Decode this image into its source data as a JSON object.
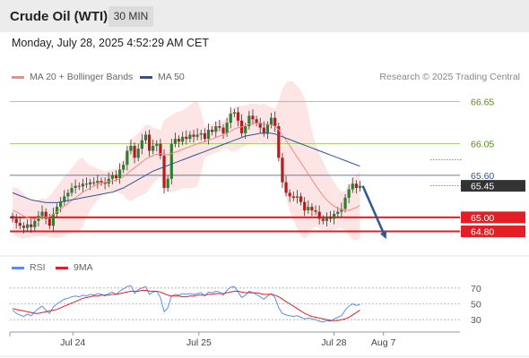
{
  "header": {
    "title": "Crude Oil (WTI)",
    "timeframe": "30 MIN",
    "datetime": "Monday, July 28, 2025 4:52:29 AM CET"
  },
  "legend": {
    "items": [
      {
        "label": "MA 20 + Bollinger Bands",
        "color": "#f28b82"
      },
      {
        "label": "MA 50",
        "color": "#2f5597"
      }
    ],
    "credit": "Research © 2025 Trading Central"
  },
  "chart_data": [
    {
      "type": "candlestick",
      "ylim": [
        64.5,
        66.85
      ],
      "xlim": [
        0,
        100
      ],
      "x_ticks": [
        {
          "label": "Jul 24",
          "x": 14
        },
        {
          "label": "Jul 25",
          "x": 42
        },
        {
          "label": "Jul 28",
          "x": 72
        },
        {
          "label": "Aug 7",
          "x": 83
        }
      ],
      "current_price": 65.45,
      "levels": [
        {
          "value": 66.65,
          "label": "66.65",
          "style": "resistance",
          "color": "#8bc34a"
        },
        {
          "value": 66.05,
          "label": "66.05",
          "style": "resistance",
          "color": "#8bc34a"
        },
        {
          "value": 65.6,
          "label": "65.60",
          "style": "pivot",
          "color": "#2f5597"
        },
        {
          "value": 65.45,
          "label": "65.45",
          "style": "last",
          "color": "#333333"
        },
        {
          "value": 65.0,
          "label": "65.00",
          "style": "support",
          "color": "#e31e24"
        },
        {
          "value": 64.8,
          "label": "64.80",
          "style": "support",
          "color": "#e31e24"
        }
      ],
      "arrow": {
        "from": [
          78,
          65.45
        ],
        "to": [
          84,
          64.75
        ],
        "color": "#2f5597"
      },
      "closes": [
        64.98,
        64.92,
        64.88,
        64.85,
        64.9,
        64.86,
        64.95,
        65.02,
        65.08,
        64.98,
        64.88,
        65.05,
        65.15,
        65.22,
        65.3,
        65.35,
        65.42,
        65.45,
        65.44,
        65.48,
        65.47,
        65.5,
        65.49,
        65.52,
        65.5,
        65.48,
        65.55,
        65.6,
        65.56,
        65.68,
        65.75,
        65.95,
        66.02,
        65.85,
        65.98,
        66.1,
        66.18,
        65.95,
        66.02,
        66.05,
        65.88,
        65.42,
        65.55,
        66.05,
        66.12,
        66.08,
        66.15,
        66.12,
        66.18,
        66.15,
        66.18,
        66.2,
        66.12,
        66.25,
        66.22,
        66.3,
        66.28,
        66.2,
        66.35,
        66.48,
        66.5,
        66.38,
        66.2,
        66.3,
        66.45,
        66.4,
        66.35,
        66.28,
        66.2,
        66.32,
        66.42,
        66.3,
        65.85,
        65.5,
        65.35,
        65.3,
        65.28,
        65.3,
        65.22,
        65.1,
        65.15,
        65.1,
        65.08,
        64.98,
        64.95,
        65.0,
        64.98,
        65.05,
        65.08,
        65.12,
        65.28,
        65.4,
        65.48,
        65.42,
        65.45
      ],
      "ma20": [
        65.1,
        65.08,
        65.05,
        65.02,
        65.0,
        64.98,
        64.98,
        64.99,
        65.0,
        65.0,
        65.01,
        65.04,
        65.08,
        65.12,
        65.16,
        65.2,
        65.24,
        65.28,
        65.32,
        65.36,
        65.39,
        65.42,
        65.45,
        65.47,
        65.49,
        65.5,
        65.51,
        65.52,
        65.53,
        65.55,
        65.58,
        65.62,
        65.67,
        65.71,
        65.75,
        65.79,
        65.83,
        65.86,
        65.88,
        65.9,
        65.91,
        65.9,
        65.89,
        65.91,
        65.93,
        65.95,
        65.97,
        65.99,
        66.01,
        66.03,
        66.05,
        66.07,
        66.08,
        66.1,
        66.12,
        66.14,
        66.16,
        66.18,
        66.2,
        66.23,
        66.26,
        66.28,
        66.29,
        66.31,
        66.33,
        66.34,
        66.34,
        66.34,
        66.33,
        66.33,
        66.32,
        66.3,
        66.25,
        66.18,
        66.1,
        66.02,
        65.94,
        65.86,
        65.78,
        65.7,
        65.62,
        65.54,
        65.46,
        65.38,
        65.31,
        65.25,
        65.2,
        65.16,
        65.13,
        65.11,
        65.1,
        65.1,
        65.12,
        65.14,
        65.17
      ],
      "ma50": [
        65.35,
        65.33,
        65.31,
        65.29,
        65.27,
        65.25,
        65.24,
        65.23,
        65.22,
        65.21,
        65.21,
        65.21,
        65.21,
        65.22,
        65.23,
        65.24,
        65.25,
        65.26,
        65.27,
        65.28,
        65.29,
        65.3,
        65.31,
        65.32,
        65.33,
        65.34,
        65.35,
        65.36,
        65.38,
        65.4,
        65.42,
        65.45,
        65.48,
        65.51,
        65.54,
        65.57,
        65.6,
        65.63,
        65.66,
        65.68,
        65.7,
        65.72,
        65.74,
        65.76,
        65.78,
        65.8,
        65.82,
        65.84,
        65.86,
        65.88,
        65.9,
        65.92,
        65.94,
        65.96,
        65.98,
        66.0,
        66.02,
        66.04,
        66.06,
        66.08,
        66.1,
        66.12,
        66.14,
        66.16,
        66.17,
        66.18,
        66.19,
        66.2,
        66.2,
        66.2,
        66.2,
        66.19,
        66.17,
        66.15,
        66.13,
        66.11,
        66.09,
        66.07,
        66.05,
        66.03,
        66.01,
        65.99,
        65.97,
        65.95,
        65.93,
        65.91,
        65.89,
        65.87,
        65.85,
        65.83,
        65.81,
        65.79,
        65.77,
        65.75,
        65.73
      ]
    },
    {
      "type": "line",
      "ylim": [
        20,
        80
      ],
      "y_ticks": [
        70,
        50,
        30
      ],
      "series": [
        {
          "name": "RSI",
          "color": "#5b8def",
          "values": [
            42,
            38,
            36,
            34,
            37,
            35,
            40,
            44,
            47,
            42,
            38,
            46,
            50,
            53,
            56,
            57,
            59,
            60,
            59,
            61,
            60,
            62,
            61,
            63,
            62,
            60,
            63,
            65,
            62,
            66,
            69,
            72,
            73,
            63,
            68,
            70,
            72,
            62,
            65,
            66,
            58,
            40,
            45,
            60,
            62,
            61,
            63,
            62,
            63,
            62,
            63,
            64,
            60,
            65,
            64,
            66,
            65,
            61,
            67,
            71,
            72,
            65,
            58,
            61,
            66,
            64,
            62,
            59,
            56,
            60,
            63,
            58,
            45,
            38,
            36,
            35,
            34,
            35,
            33,
            31,
            32,
            31,
            30,
            28,
            27,
            29,
            28,
            31,
            33,
            35,
            42,
            47,
            50,
            48,
            49
          ]
        },
        {
          "name": "9MA",
          "color": "#e31e24",
          "values": [
            44,
            43,
            42,
            41,
            40,
            39,
            38,
            38,
            39,
            40,
            41,
            42,
            43,
            45,
            47,
            49,
            51,
            53,
            55,
            57,
            58,
            59,
            60,
            60,
            61,
            61,
            61,
            62,
            62,
            63,
            64,
            65,
            66,
            66,
            66,
            67,
            67,
            66,
            66,
            66,
            65,
            63,
            61,
            60,
            60,
            60,
            59,
            59,
            60,
            60,
            61,
            61,
            61,
            62,
            62,
            63,
            63,
            63,
            64,
            65,
            66,
            66,
            65,
            64,
            64,
            64,
            64,
            63,
            62,
            62,
            62,
            61,
            59,
            56,
            53,
            50,
            47,
            44,
            41,
            38,
            36,
            34,
            33,
            32,
            31,
            30,
            29,
            29,
            29,
            30,
            31,
            33,
            36,
            39,
            42
          ]
        }
      ]
    }
  ],
  "indicator_legend": {
    "items": [
      {
        "label": "RSI",
        "color": "#5b8def"
      },
      {
        "label": "9MA",
        "color": "#e31e24"
      }
    ]
  }
}
